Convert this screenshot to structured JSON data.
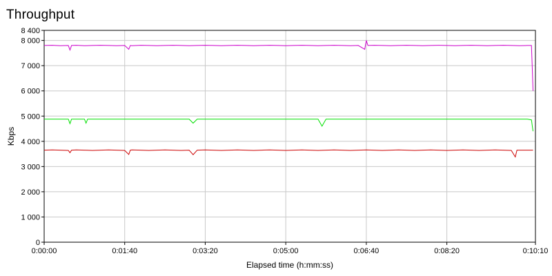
{
  "chart_data": {
    "type": "line",
    "title": "Throughput",
    "xlabel": "Elapsed time (h:mm:ss)",
    "ylabel": "Kbps",
    "xlim": [
      0,
      610
    ],
    "ylim": [
      0,
      8400
    ],
    "x_ticks": [
      {
        "value": 0,
        "label": "0:00:00"
      },
      {
        "value": 100,
        "label": "0:01:40"
      },
      {
        "value": 200,
        "label": "0:03:20"
      },
      {
        "value": 300,
        "label": "0:05:00"
      },
      {
        "value": 400,
        "label": "0:06:40"
      },
      {
        "value": 500,
        "label": "0:08:20"
      },
      {
        "value": 610,
        "label": "0:10:10"
      }
    ],
    "y_ticks": [
      {
        "value": 0,
        "label": "0"
      },
      {
        "value": 1000,
        "label": "1 000"
      },
      {
        "value": 2000,
        "label": "2 000"
      },
      {
        "value": 3000,
        "label": "3 000"
      },
      {
        "value": 4000,
        "label": "4 000"
      },
      {
        "value": 5000,
        "label": "5 000"
      },
      {
        "value": 6000,
        "label": "6 000"
      },
      {
        "value": 7000,
        "label": "7 000"
      },
      {
        "value": 8000,
        "label": "8 000"
      },
      {
        "value": 8400,
        "label": "8 400"
      }
    ],
    "grid": true,
    "series": [
      {
        "color": "#cc00cc",
        "x": [
          0,
          10,
          20,
          30,
          32,
          34,
          40,
          50,
          60,
          70,
          80,
          90,
          100,
          105,
          107,
          109,
          120,
          130,
          140,
          150,
          160,
          170,
          180,
          190,
          200,
          210,
          220,
          230,
          240,
          250,
          260,
          270,
          280,
          290,
          300,
          310,
          320,
          330,
          340,
          350,
          360,
          370,
          380,
          390,
          398,
          400,
          402,
          410,
          420,
          430,
          440,
          450,
          460,
          470,
          480,
          490,
          500,
          510,
          520,
          530,
          540,
          550,
          560,
          570,
          580,
          590,
          600,
          605,
          606,
          607
        ],
        "y": [
          7800,
          7810,
          7790,
          7800,
          7620,
          7800,
          7810,
          7790,
          7800,
          7810,
          7800,
          7790,
          7800,
          7650,
          7800,
          7790,
          7810,
          7800,
          7790,
          7800,
          7810,
          7800,
          7790,
          7800,
          7810,
          7800,
          7790,
          7800,
          7810,
          7800,
          7790,
          7800,
          7810,
          7800,
          7790,
          7800,
          7810,
          7800,
          7790,
          7800,
          7810,
          7800,
          7790,
          7800,
          7650,
          8000,
          7800,
          7810,
          7800,
          7790,
          7800,
          7810,
          7800,
          7790,
          7800,
          7810,
          7800,
          7790,
          7800,
          7810,
          7800,
          7790,
          7800,
          7810,
          7800,
          7790,
          7800,
          7800,
          7000,
          6000
        ]
      },
      {
        "color": "#00e000",
        "x": [
          0,
          10,
          20,
          30,
          32,
          34,
          40,
          50,
          52,
          54,
          60,
          70,
          80,
          90,
          100,
          120,
          140,
          160,
          180,
          185,
          190,
          200,
          220,
          240,
          260,
          280,
          300,
          320,
          340,
          345,
          350,
          370,
          390,
          400,
          420,
          440,
          460,
          480,
          500,
          520,
          540,
          560,
          580,
          600,
          605,
          607
        ],
        "y": [
          4880,
          4880,
          4880,
          4880,
          4700,
          4880,
          4880,
          4880,
          4720,
          4880,
          4880,
          4880,
          4880,
          4880,
          4880,
          4880,
          4880,
          4880,
          4880,
          4720,
          4880,
          4880,
          4880,
          4880,
          4880,
          4880,
          4880,
          4880,
          4880,
          4600,
          4880,
          4880,
          4880,
          4880,
          4880,
          4880,
          4880,
          4880,
          4880,
          4880,
          4880,
          4880,
          4880,
          4880,
          4850,
          4400
        ]
      },
      {
        "color": "#cc0000",
        "x": [
          0,
          10,
          20,
          30,
          32,
          34,
          40,
          50,
          60,
          70,
          80,
          90,
          100,
          105,
          107,
          109,
          120,
          130,
          140,
          150,
          160,
          170,
          180,
          185,
          190,
          200,
          210,
          220,
          230,
          240,
          250,
          260,
          270,
          280,
          290,
          300,
          310,
          320,
          330,
          340,
          350,
          360,
          370,
          380,
          390,
          400,
          410,
          420,
          430,
          440,
          450,
          460,
          470,
          480,
          490,
          500,
          510,
          520,
          530,
          540,
          550,
          560,
          570,
          580,
          585,
          587,
          590,
          600,
          607
        ],
        "y": [
          3650,
          3660,
          3650,
          3640,
          3550,
          3650,
          3660,
          3650,
          3640,
          3650,
          3660,
          3650,
          3640,
          3480,
          3650,
          3660,
          3650,
          3640,
          3650,
          3660,
          3650,
          3640,
          3650,
          3470,
          3650,
          3660,
          3650,
          3640,
          3650,
          3660,
          3650,
          3640,
          3650,
          3660,
          3650,
          3640,
          3650,
          3660,
          3650,
          3640,
          3650,
          3660,
          3650,
          3640,
          3650,
          3660,
          3650,
          3640,
          3650,
          3660,
          3650,
          3640,
          3650,
          3660,
          3650,
          3640,
          3650,
          3660,
          3650,
          3640,
          3650,
          3660,
          3650,
          3640,
          3380,
          3650,
          3650,
          3650,
          3650
        ]
      }
    ]
  }
}
